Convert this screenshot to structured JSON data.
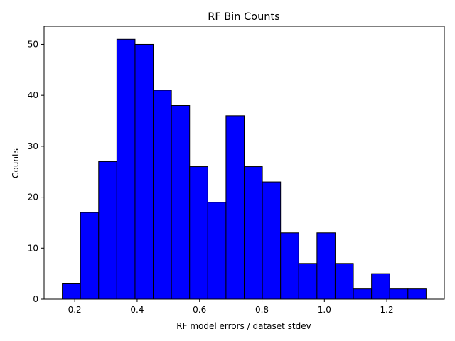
{
  "chart_data": {
    "type": "bar",
    "title": "RF Bin Counts",
    "xlabel": "RF model errors / dataset stdev",
    "ylabel": "Counts",
    "bin_edges": [
      0.16,
      0.2183,
      0.2766,
      0.3349,
      0.3932,
      0.4515,
      0.5098,
      0.5681,
      0.6264,
      0.6847,
      0.743,
      0.8013,
      0.8596,
      0.9179,
      0.9762,
      1.0345,
      1.0928,
      1.1511,
      1.2094,
      1.2677,
      1.326
    ],
    "values": [
      3,
      17,
      27,
      51,
      50,
      41,
      38,
      26,
      19,
      36,
      26,
      23,
      13,
      7,
      13,
      7,
      2,
      5,
      2,
      2
    ],
    "xlim": [
      0.1017,
      1.3843
    ],
    "ylim": [
      0,
      53.55
    ],
    "xticks": [
      0.2,
      0.4,
      0.6,
      0.8,
      1.0,
      1.2
    ],
    "xtick_labels": [
      "0.2",
      "0.4",
      "0.6",
      "0.8",
      "1.0",
      "1.2"
    ],
    "yticks": [
      0,
      10,
      20,
      30,
      40,
      50
    ],
    "ytick_labels": [
      "0",
      "10",
      "20",
      "30",
      "40",
      "50"
    ],
    "bar_color": "#0000ff",
    "edge_color": "#000000",
    "grid": false,
    "legend": "none"
  }
}
